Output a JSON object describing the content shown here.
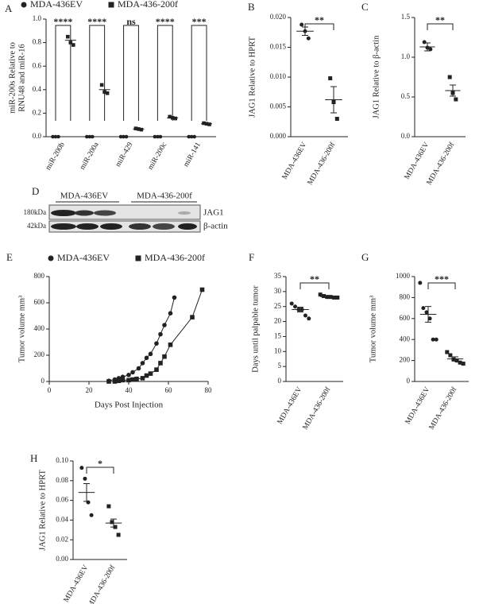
{
  "chart_data": [
    {
      "type": "grouped_dot",
      "label": "A",
      "y_label": [
        "miR-200s Relative to",
        "RNU48 and miR-16"
      ],
      "categories": [
        "miR-200b",
        "miR-200a",
        "miR-429",
        "miR-200c",
        "miR-141"
      ],
      "series": [
        {
          "name": "MDA-436EV",
          "marker": "circle",
          "color": "#222222",
          "values": [
            0,
            0,
            0,
            0,
            0
          ],
          "points": [
            [
              0,
              0,
              0
            ],
            [
              0,
              0,
              0
            ],
            [
              0,
              0,
              0
            ],
            [
              0,
              0,
              0
            ],
            [
              0,
              0,
              0
            ]
          ]
        },
        {
          "name": "MDA-436-200f",
          "marker": "square",
          "color": "#222222",
          "values": [
            0.82,
            0.4,
            0.065,
            0.16,
            0.11
          ],
          "points": [
            [
              0.85,
              0.8,
              0.78
            ],
            [
              0.44,
              0.38,
              0.37
            ],
            [
              0.07,
              0.065,
              0.06
            ],
            [
              0.17,
              0.16,
              0.155
            ],
            [
              0.115,
              0.11,
              0.105
            ]
          ]
        }
      ],
      "significance": [
        "****",
        "****",
        "ns",
        "****",
        "***"
      ],
      "ylim": [
        0,
        1
      ],
      "yticks": [
        {
          "value": 0,
          "label": "0.0"
        },
        {
          "value": 0.2,
          "label": "0.2"
        },
        {
          "value": 0.4,
          "label": "0.4"
        },
        {
          "value": 0.6,
          "label": "0.6"
        },
        {
          "value": 0.8,
          "label": "0.8"
        },
        {
          "value": 1,
          "label": "1.0"
        }
      ]
    },
    {
      "type": "dot",
      "label": "B",
      "y_label": [
        "JAG1 Relative to HPRT"
      ],
      "categories": [
        "MDA-436EV",
        "MDA-436-200f"
      ],
      "markers": [
        "circle",
        "square"
      ],
      "color": "#222222",
      "values": [
        0.0177,
        0.0062
      ],
      "errors": [
        0.0007,
        0.0022
      ],
      "points": [
        [
          0.0188,
          0.0177,
          0.0165
        ],
        [
          0.0098,
          0.0058,
          0.003
        ]
      ],
      "significance": [
        "**"
      ],
      "ylim": [
        0,
        0.02
      ],
      "yticks": [
        {
          "value": 0,
          "label": "0.000"
        },
        {
          "value": 0.005,
          "label": "0.005"
        },
        {
          "value": 0.01,
          "label": "0.010"
        },
        {
          "value": 0.015,
          "label": "0.015"
        },
        {
          "value": 0.02,
          "label": "0.020"
        }
      ]
    },
    {
      "type": "dot",
      "label": "C",
      "y_label": [
        "JAG1 Relative to β-actin"
      ],
      "categories": [
        "MDA-436EV",
        "MDA-436-200f"
      ],
      "markers": [
        "circle",
        "square"
      ],
      "color": "#222222",
      "values": [
        1.13,
        0.58
      ],
      "errors": [
        0.05,
        0.07
      ],
      "points": [
        [
          1.19,
          1.12,
          1.1
        ],
        [
          0.75,
          0.55,
          0.47
        ]
      ],
      "significance": [
        "**"
      ],
      "ylim": [
        0,
        1.5
      ],
      "yticks": [
        {
          "value": 0,
          "label": "0.0"
        },
        {
          "value": 0.5,
          "label": "0.5"
        },
        {
          "value": 1,
          "label": "1.0"
        },
        {
          "value": 1.5,
          "label": "1.5"
        }
      ]
    },
    {
      "type": "line",
      "label": "E",
      "y_label": [
        "Tumor volume mm³"
      ],
      "x_label": "Days Post Injection",
      "series": [
        {
          "name": "MDA-436EV",
          "marker": "circle",
          "color": "#222222",
          "x": [
            30,
            33,
            35,
            37,
            40,
            42,
            45,
            47,
            49,
            51,
            54,
            56,
            58,
            61,
            63
          ],
          "values": [
            5,
            15,
            25,
            35,
            50,
            70,
            100,
            140,
            180,
            210,
            290,
            360,
            430,
            520,
            640
          ]
        },
        {
          "name": "MDA-436-200f",
          "marker": "square",
          "color": "#222222",
          "x": [
            30,
            33,
            35,
            37,
            40,
            42,
            44,
            47,
            49,
            51,
            54,
            56,
            58,
            61,
            72,
            77
          ],
          "values": [
            0,
            0,
            5,
            10,
            10,
            15,
            20,
            25,
            45,
            60,
            90,
            140,
            190,
            280,
            490,
            700
          ]
        }
      ],
      "xlim": [
        0,
        80
      ],
      "xticks": [
        0,
        20,
        40,
        60,
        80
      ],
      "ylim": [
        0,
        800
      ],
      "yticks": [
        0,
        200,
        400,
        600,
        800
      ]
    },
    {
      "type": "dot",
      "label": "F",
      "y_label": [
        "Days until palpable tumor"
      ],
      "categories": [
        "MDA-436EV",
        "MDA-436-200f"
      ],
      "markers": [
        "circle",
        "square"
      ],
      "color": "#222222",
      "values": [
        24,
        28.3
      ],
      "errors": [
        0.8,
        0.25
      ],
      "points": [
        [
          26,
          25,
          24,
          24,
          22,
          21
        ],
        [
          29,
          28.5,
          28.2,
          28.2,
          28,
          28
        ]
      ],
      "significance": [
        "**"
      ],
      "ylim": [
        0,
        35
      ],
      "yticks": [
        0,
        5,
        10,
        15,
        20,
        25,
        30,
        35
      ]
    },
    {
      "type": "dot",
      "label": "G",
      "y_label": [
        "Tumor volume mm³"
      ],
      "categories": [
        "MDA-436EV",
        "MDA-436-200f"
      ],
      "markers": [
        "circle",
        "square"
      ],
      "color": "#222222",
      "values": [
        640,
        215
      ],
      "errors": [
        75,
        20
      ],
      "points": [
        [
          940,
          700,
          660,
          600,
          400,
          400
        ],
        [
          280,
          250,
          210,
          200,
          180,
          170
        ]
      ],
      "significance": [
        "***"
      ],
      "ylim": [
        0,
        1000
      ],
      "yticks": [
        0,
        200,
        400,
        600,
        800,
        1000
      ]
    },
    {
      "type": "dot",
      "label": "H",
      "y_label": [
        "JAG1 Relative to HPRT"
      ],
      "categories": [
        "MDA-436EV",
        "MDA-436-200f"
      ],
      "markers": [
        "circle",
        "square"
      ],
      "color": "#222222",
      "values": [
        0.068,
        0.037
      ],
      "errors": [
        0.009,
        0.004
      ],
      "points": [
        [
          0.093,
          0.082,
          0.058,
          0.045
        ],
        [
          0.054,
          0.038,
          0.033,
          0.025
        ]
      ],
      "significance": [
        "*"
      ],
      "ylim": [
        0,
        0.1
      ],
      "yticks": [
        {
          "value": 0,
          "label": "0.00"
        },
        {
          "value": 0.02,
          "label": "0.02"
        },
        {
          "value": 0.04,
          "label": "0.04"
        },
        {
          "value": 0.06,
          "label": "0.06"
        },
        {
          "value": 0.08,
          "label": "0.08"
        },
        {
          "value": 0.1,
          "label": "0.10"
        }
      ]
    }
  ],
  "western_blot": {
    "label": "D",
    "groups": [
      "MDA-436EV",
      "MDA-436-200f"
    ],
    "markers": [
      "180kDa",
      "42kDa"
    ],
    "bands": [
      "JAG1",
      "β-actin"
    ]
  }
}
